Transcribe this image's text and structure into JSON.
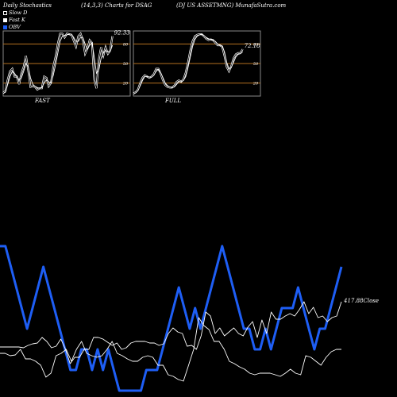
{
  "header": {
    "left": "Daily Stochastics",
    "center": "(14,3,3) Charts for DSAG",
    "right": "(DJ US ASSETMNG) MunafaSutra.com"
  },
  "legend": [
    {
      "label": "Slow  D",
      "swatch": "outline-white"
    },
    {
      "label": "Fast K",
      "swatch": "filled-white"
    },
    {
      "label": "OBV",
      "swatch": "#1e5ef5"
    }
  ],
  "chart_data": [
    {
      "type": "line",
      "panel": "fast",
      "label": "FAST",
      "last_value_label": "92.33",
      "ylim": [
        0,
        100
      ],
      "yticks": [
        20,
        50,
        80
      ],
      "reference_lines": [
        20,
        50,
        80
      ],
      "series": [
        {
          "color": "#ffffff",
          "values": [
            5,
            8,
            25,
            38,
            42,
            30,
            30,
            18,
            35,
            45,
            62,
            40,
            14,
            15,
            14,
            10,
            12,
            12,
            30,
            28,
            15,
            20,
            45,
            60,
            80,
            96,
            96,
            90,
            96,
            95,
            94,
            85,
            76,
            92,
            96,
            86,
            65,
            73,
            86,
            82,
            25,
            12,
            56,
            75,
            62,
            75,
            65,
            70,
            92
          ]
        },
        {
          "color": "#ffffff",
          "values": [
            4,
            6,
            18,
            30,
            38,
            35,
            30,
            25,
            28,
            38,
            50,
            45,
            28,
            18,
            15,
            13,
            12,
            13,
            20,
            25,
            22,
            20,
            32,
            48,
            66,
            84,
            92,
            93,
            94,
            95,
            95,
            90,
            84,
            84,
            90,
            90,
            80,
            72,
            78,
            82,
            60,
            35,
            40,
            58,
            66,
            70,
            68,
            68,
            78
          ]
        }
      ]
    },
    {
      "type": "line",
      "panel": "full",
      "label": "FULL",
      "last_value_label": "72.18",
      "ylim": [
        0,
        100
      ],
      "yticks": [
        20,
        50,
        80
      ],
      "reference_lines": [
        20,
        50,
        80
      ],
      "series": [
        {
          "color": "#ffffff",
          "values": [
            4,
            6,
            10,
            20,
            28,
            32,
            30,
            28,
            30,
            34,
            42,
            42,
            34,
            24,
            17,
            14,
            13,
            13,
            16,
            22,
            24,
            22,
            26,
            36,
            52,
            70,
            84,
            92,
            94,
            95,
            95,
            92,
            88,
            86,
            87,
            86,
            82,
            78,
            78,
            76,
            62,
            45,
            38,
            46,
            58,
            64,
            66,
            66,
            72
          ]
        },
        {
          "color": "#ffffff",
          "values": [
            3,
            5,
            8,
            16,
            24,
            30,
            30,
            29,
            29,
            32,
            38,
            41,
            36,
            28,
            20,
            16,
            14,
            13,
            14,
            18,
            22,
            22,
            24,
            30,
            44,
            60,
            76,
            87,
            92,
            94,
            95,
            93,
            90,
            88,
            87,
            86,
            84,
            80,
            78,
            77,
            68,
            52,
            42,
            44,
            52,
            60,
            64,
            65,
            68
          ]
        }
      ]
    },
    {
      "type": "line",
      "panel": "price-volume",
      "series": [
        {
          "name": "OBV",
          "color": "#1e5ef5",
          "values": [
            310,
            310,
            336,
            362,
            388,
            414,
            388,
            362,
            336,
            362,
            388,
            414,
            440,
            466,
            466,
            440,
            440,
            466,
            440,
            466,
            440,
            466,
            492,
            492,
            492,
            492,
            492,
            466,
            466,
            466,
            440,
            414,
            388,
            362,
            388,
            414,
            388,
            414,
            388,
            362,
            336,
            310,
            336,
            362,
            388,
            414,
            414,
            440,
            440,
            414,
            440,
            414,
            388,
            388,
            388,
            362,
            388,
            414,
            440,
            414,
            414,
            388,
            362,
            336
          ]
        },
        {
          "name": "Close",
          "color": "#ffffff",
          "end_label": "417.88Close",
          "values": [
            437,
            437,
            437,
            437,
            437,
            438,
            435,
            433,
            432,
            425,
            430,
            438,
            436,
            427,
            440,
            458,
            450,
            450,
            440,
            440,
            425,
            425,
            427,
            431,
            435,
            432,
            440,
            438,
            432,
            430,
            430,
            430,
            432,
            432,
            435,
            433,
            420,
            413,
            418,
            420,
            436,
            435,
            440,
            423,
            393,
            398,
            420,
            413,
            423,
            418,
            413,
            420,
            423,
            412,
            405,
            425,
            403,
            420,
            393,
            402,
            402,
            398,
            395,
            398,
            390,
            380,
            395,
            387,
            400,
            398,
            405,
            400,
            398,
            380
          ]
        },
        {
          "name": "",
          "color": "#ffffff",
          "values": [
            445,
            445,
            448,
            447,
            440,
            452,
            452,
            455,
            460,
            475,
            470,
            448,
            445,
            440,
            455,
            440,
            430,
            445,
            448,
            450,
            448,
            440,
            430,
            445,
            448,
            452,
            455,
            455,
            450,
            448,
            450,
            460,
            460,
            472,
            474,
            478,
            480,
            460,
            440,
            400,
            410,
            415,
            430,
            430,
            440,
            455,
            458,
            462,
            465,
            470,
            472,
            470,
            470,
            470,
            472,
            474,
            470,
            465,
            470,
            472,
            448,
            450,
            455,
            460,
            450,
            443,
            440,
            440
          ]
        }
      ]
    }
  ]
}
